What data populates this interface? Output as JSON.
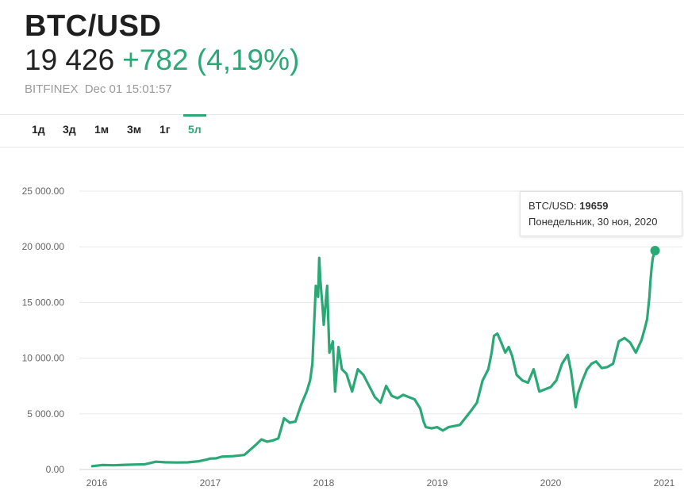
{
  "header": {
    "title": "BTC/USD",
    "price": "19 426",
    "change": "+782 (4,19%)",
    "exchange": "BITFINEX",
    "datetime": "Dec 01 15:01:57"
  },
  "tabs": [
    {
      "label": "1д",
      "active": false
    },
    {
      "label": "3д",
      "active": false
    },
    {
      "label": "1м",
      "active": false
    },
    {
      "label": "3м",
      "active": false
    },
    {
      "label": "1г",
      "active": false
    },
    {
      "label": "5л",
      "active": true
    }
  ],
  "colors": {
    "accent": "#2aa876",
    "line": "#2aa876"
  },
  "tooltip": {
    "series_label": "BTC/USD:",
    "value": "19659",
    "date": "Понедельник, 30 ноя, 2020"
  },
  "chart_data": {
    "type": "line",
    "title": "",
    "xlabel": "",
    "ylabel": "",
    "xlim": [
      2016.0,
      2021.0
    ],
    "ylim": [
      0,
      25000
    ],
    "grid": true,
    "y_ticks": [
      0,
      5000,
      10000,
      15000,
      20000,
      25000
    ],
    "y_tick_labels": [
      "0.00",
      "5 000.00",
      "10 000.00",
      "15 000.00",
      "20 000.00",
      "25 000.00"
    ],
    "x_ticks": [
      2016,
      2017,
      2018,
      2019,
      2020,
      2021
    ],
    "x_tick_labels": [
      "2016",
      "2017",
      "2018",
      "2019",
      "2020",
      "2021"
    ],
    "series": [
      {
        "name": "BTC/USD",
        "x": [
          2015.96,
          2016.05,
          2016.15,
          2016.25,
          2016.35,
          2016.42,
          2016.48,
          2016.52,
          2016.6,
          2016.7,
          2016.8,
          2016.9,
          2016.97,
          2017.0,
          2017.05,
          2017.1,
          2017.2,
          2017.3,
          2017.4,
          2017.45,
          2017.5,
          2017.55,
          2017.6,
          2017.65,
          2017.7,
          2017.75,
          2017.8,
          2017.85,
          2017.88,
          2017.9,
          2017.93,
          2017.95,
          2017.96,
          2017.97,
          2017.99,
          2018.0,
          2018.03,
          2018.05,
          2018.08,
          2018.1,
          2018.13,
          2018.16,
          2018.2,
          2018.25,
          2018.3,
          2018.35,
          2018.4,
          2018.45,
          2018.5,
          2018.55,
          2018.6,
          2018.65,
          2018.7,
          2018.75,
          2018.8,
          2018.85,
          2018.88,
          2018.9,
          2018.95,
          2019.0,
          2019.05,
          2019.1,
          2019.2,
          2019.3,
          2019.35,
          2019.4,
          2019.45,
          2019.48,
          2019.5,
          2019.53,
          2019.56,
          2019.6,
          2019.63,
          2019.66,
          2019.7,
          2019.75,
          2019.8,
          2019.85,
          2019.9,
          2019.95,
          2020.0,
          2020.05,
          2020.1,
          2020.15,
          2020.18,
          2020.22,
          2020.24,
          2020.28,
          2020.32,
          2020.36,
          2020.4,
          2020.45,
          2020.5,
          2020.55,
          2020.6,
          2020.65,
          2020.7,
          2020.75,
          2020.8,
          2020.83,
          2020.85,
          2020.87,
          2020.88,
          2020.89,
          2020.9,
          2020.92
        ],
        "values": [
          300,
          400,
          380,
          420,
          450,
          460,
          600,
          700,
          650,
          630,
          640,
          740,
          900,
          980,
          1000,
          1150,
          1200,
          1300,
          2200,
          2700,
          2500,
          2600,
          2800,
          4600,
          4200,
          4300,
          5800,
          7000,
          8000,
          9500,
          16500,
          15500,
          19000,
          17000,
          14500,
          13000,
          16500,
          10500,
          11500,
          7000,
          11000,
          9000,
          8600,
          7000,
          9000,
          8500,
          7500,
          6500,
          6000,
          7500,
          6600,
          6400,
          6700,
          6500,
          6300,
          5500,
          4300,
          3800,
          3700,
          3800,
          3500,
          3800,
          4000,
          5300,
          6000,
          8000,
          9000,
          10500,
          12000,
          12200,
          11500,
          10500,
          11000,
          10200,
          8500,
          8000,
          7800,
          9000,
          7000,
          7200,
          7400,
          8000,
          9500,
          10300,
          8800,
          5600,
          6800,
          8000,
          9000,
          9500,
          9700,
          9100,
          9200,
          9500,
          11500,
          11800,
          11400,
          10500,
          11600,
          12700,
          13500,
          15500,
          17000,
          18200,
          19000,
          19659
        ]
      }
    ]
  }
}
